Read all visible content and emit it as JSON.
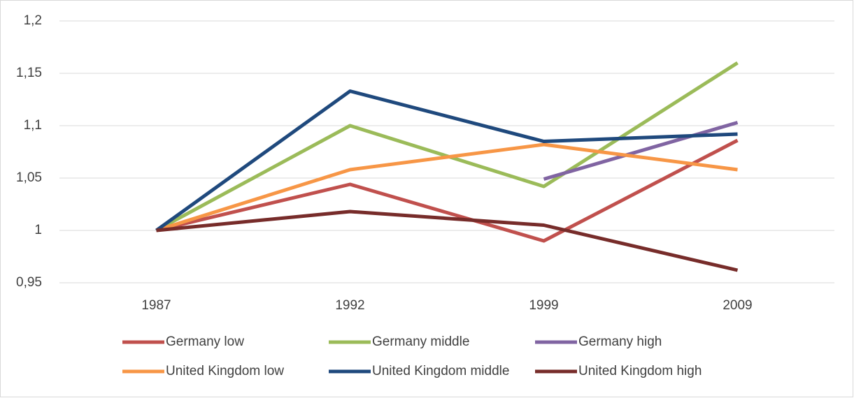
{
  "chart_data": {
    "type": "line",
    "categories": [
      "1987",
      "1992",
      "1999",
      "2009"
    ],
    "series": [
      {
        "name": "Germany low",
        "color": "#c0504d",
        "values": [
          1,
          1.044,
          0.99,
          1.086
        ]
      },
      {
        "name": "Germany middle",
        "color": "#9bbb59",
        "values": [
          1,
          1.1,
          1.042,
          1.16
        ]
      },
      {
        "name": "Germany high",
        "color": "#8064a2",
        "values": [
          null,
          null,
          1.049,
          1.103
        ]
      },
      {
        "name": "United Kingdom low",
        "color": "#f79646",
        "values": [
          1,
          1.058,
          1.082,
          1.058
        ]
      },
      {
        "name": "United Kingdom middle",
        "color": "#1f497d",
        "values": [
          1,
          1.133,
          1.085,
          1.092
        ]
      },
      {
        "name": "United Kingdom high",
        "color": "#772c2a",
        "values": [
          1,
          1.018,
          1.005,
          0.962
        ]
      }
    ],
    "ylim": [
      0.95,
      1.2
    ],
    "yticks": [
      {
        "value": 0.95,
        "label": "0,95"
      },
      1,
      {
        "value": 1.05,
        "label": "1,05"
      },
      {
        "value": 1.1,
        "label": "1,1"
      },
      {
        "value": 1.15,
        "label": "1,15"
      },
      {
        "value": 1.2,
        "label": "1,2"
      }
    ],
    "grid": true,
    "legend": "bottom"
  }
}
